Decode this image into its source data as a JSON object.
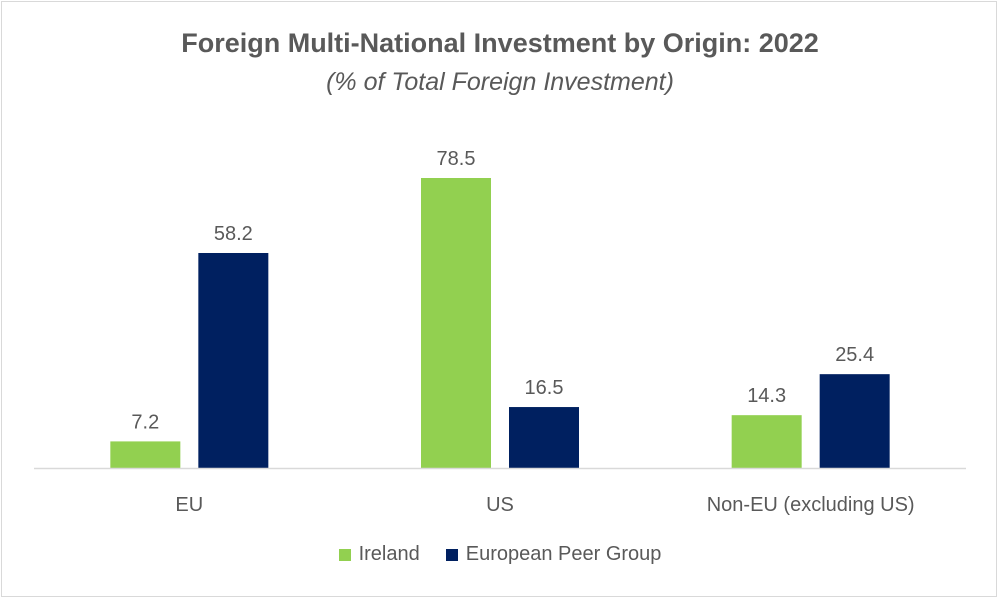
{
  "chart_data": {
    "type": "bar",
    "title": "Foreign Multi-National Investment by Origin:  2022",
    "subtitle": "(% of Total Foreign Investment)",
    "categories": [
      "EU",
      "US",
      "Non-EU (excluding US)"
    ],
    "series": [
      {
        "name": "Ireland",
        "color": "#92d050",
        "values": [
          7.2,
          78.5,
          14.3
        ]
      },
      {
        "name": "European Peer Group",
        "color": "#002060",
        "values": [
          58.2,
          16.5,
          25.4
        ]
      }
    ],
    "ylim": [
      0,
      85
    ],
    "grid": false,
    "legend_position": "bottom"
  }
}
